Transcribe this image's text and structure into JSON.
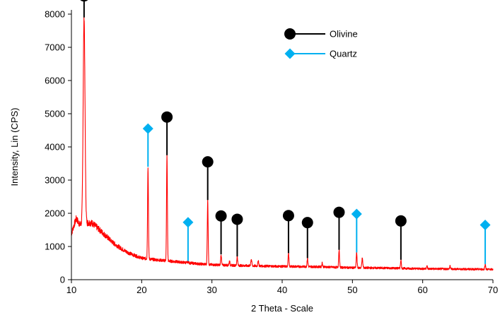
{
  "chart_data": {
    "type": "line",
    "xlabel": "2 Theta - Scale",
    "ylabel": "Intensity, Lin (CPS)",
    "xlim": [
      10,
      70
    ],
    "ylim": [
      0,
      8000
    ],
    "xticks": [
      10,
      20,
      30,
      40,
      50,
      60,
      70
    ],
    "yticks": [
      0,
      1000,
      2000,
      3000,
      4000,
      5000,
      6000,
      7000,
      8000
    ],
    "grid": false,
    "legend_position": "top-right",
    "pattern": {
      "color": "#ff0000",
      "baseline": [
        [
          10.0,
          1380
        ],
        [
          10.3,
          1600
        ],
        [
          10.7,
          1850
        ],
        [
          11.0,
          1720
        ],
        [
          11.3,
          1650
        ],
        [
          12.5,
          1720
        ],
        [
          13.0,
          1700
        ],
        [
          14.0,
          1500
        ],
        [
          15.0,
          1300
        ],
        [
          16.0,
          1100
        ],
        [
          17.0,
          950
        ],
        [
          18.0,
          820
        ],
        [
          19.0,
          730
        ],
        [
          20.0,
          650
        ],
        [
          22.0,
          600
        ],
        [
          24.0,
          560
        ],
        [
          26.0,
          520
        ],
        [
          28.0,
          480
        ],
        [
          30.0,
          450
        ],
        [
          35.0,
          420
        ],
        [
          40.0,
          400
        ],
        [
          45.0,
          390
        ],
        [
          50.0,
          360
        ],
        [
          55.0,
          350
        ],
        [
          60.0,
          330
        ],
        [
          65.0,
          320
        ],
        [
          70.0,
          310
        ]
      ],
      "peaks": [
        {
          "x": 11.8,
          "y": 7900,
          "w": 0.13
        },
        {
          "x": 20.9,
          "y": 3400,
          "w": 0.06
        },
        {
          "x": 23.6,
          "y": 3750,
          "w": 0.06
        },
        {
          "x": 26.6,
          "y": 560,
          "w": 0.06
        },
        {
          "x": 29.4,
          "y": 2400,
          "w": 0.06
        },
        {
          "x": 31.3,
          "y": 760,
          "w": 0.06
        },
        {
          "x": 32.5,
          "y": 560,
          "w": 0.06
        },
        {
          "x": 33.6,
          "y": 700,
          "w": 0.06
        },
        {
          "x": 35.6,
          "y": 620,
          "w": 0.07
        },
        {
          "x": 36.6,
          "y": 580,
          "w": 0.06
        },
        {
          "x": 40.9,
          "y": 800,
          "w": 0.06
        },
        {
          "x": 43.6,
          "y": 650,
          "w": 0.06
        },
        {
          "x": 45.7,
          "y": 510,
          "w": 0.06
        },
        {
          "x": 48.1,
          "y": 900,
          "w": 0.06
        },
        {
          "x": 50.6,
          "y": 820,
          "w": 0.06
        },
        {
          "x": 51.4,
          "y": 640,
          "w": 0.07
        },
        {
          "x": 56.9,
          "y": 600,
          "w": 0.06
        },
        {
          "x": 60.6,
          "y": 420,
          "w": 0.06
        },
        {
          "x": 63.9,
          "y": 410,
          "w": 0.06
        },
        {
          "x": 68.9,
          "y": 470,
          "w": 0.06
        }
      ]
    },
    "series": [
      {
        "name": "Olivine",
        "marker": "circle",
        "color": "#000000",
        "points": [
          {
            "x": 11.8,
            "y": 8550,
            "line_to": 7900
          },
          {
            "x": 23.6,
            "y": 4900,
            "line_to": 3750
          },
          {
            "x": 29.4,
            "y": 3550,
            "line_to": 2400
          },
          {
            "x": 31.3,
            "y": 1920,
            "line_to": 760
          },
          {
            "x": 33.6,
            "y": 1820,
            "line_to": 700
          },
          {
            "x": 40.9,
            "y": 1930,
            "line_to": 800
          },
          {
            "x": 43.6,
            "y": 1720,
            "line_to": 650
          },
          {
            "x": 48.1,
            "y": 2030,
            "line_to": 900
          },
          {
            "x": 56.9,
            "y": 1770,
            "line_to": 600
          }
        ]
      },
      {
        "name": "Quartz",
        "marker": "diamond",
        "color": "#00b0f0",
        "points": [
          {
            "x": 20.9,
            "y": 4550,
            "line_to": 3400
          },
          {
            "x": 26.6,
            "y": 1730,
            "line_to": 560
          },
          {
            "x": 50.6,
            "y": 1980,
            "line_to": 820
          },
          {
            "x": 68.9,
            "y": 1650,
            "line_to": 470
          }
        ]
      }
    ]
  }
}
